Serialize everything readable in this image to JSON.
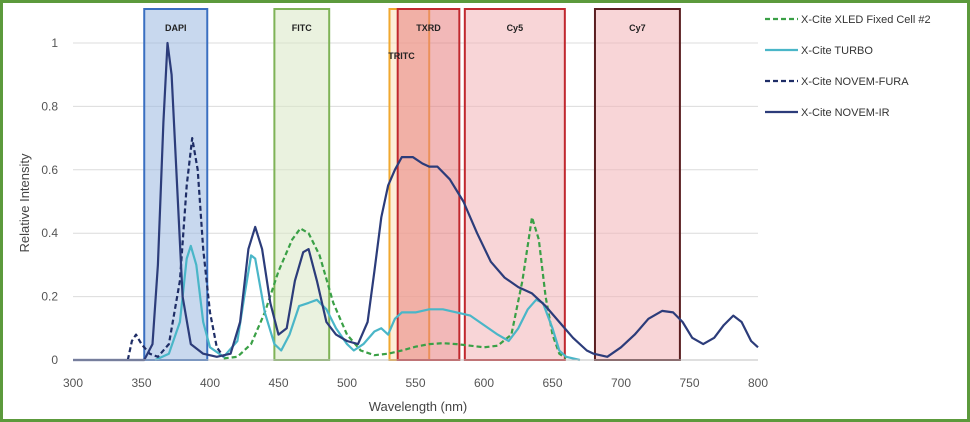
{
  "chart_data": {
    "type": "line",
    "xlabel": "Wavelength (nm)",
    "ylabel": "Relative Intensity",
    "xlim": [
      300,
      800
    ],
    "ylim": [
      0,
      1.1
    ],
    "x_ticks": [
      300,
      350,
      400,
      450,
      500,
      550,
      600,
      650,
      700,
      750,
      800
    ],
    "y_ticks": [
      0,
      0.2,
      0.4,
      0.6,
      0.8,
      1
    ],
    "y_tick_labels": [
      "0",
      "0.2",
      "0.4",
      "0.6",
      "0.8",
      "1"
    ],
    "grid": "horizontal",
    "legend_position": "right",
    "bands": [
      {
        "label": "DAPI",
        "x0": 352,
        "x1": 398,
        "fill": "#9bb8e0",
        "stroke": "#3a6fc1"
      },
      {
        "label": "FITC",
        "x0": 447,
        "x1": 487,
        "fill": "#d9e8c4",
        "stroke": "#7fb357"
      },
      {
        "label": "TRITC",
        "x0": 531,
        "x1": 560,
        "fill": "#fbe0b8",
        "stroke": "#f0a830"
      },
      {
        "label": "TXRD",
        "x0": 537,
        "x1": 582,
        "fill": "#e87d7d",
        "stroke": "#c0282e"
      },
      {
        "label": "Cy5",
        "x0": 586,
        "x1": 659,
        "fill": "#f2b3b6",
        "stroke": "#c0282e"
      },
      {
        "label": "Cy7",
        "x0": 681,
        "x1": 743,
        "fill": "#f2b3b6",
        "stroke": "#5a1e20"
      }
    ],
    "series": [
      {
        "name": "X-Cite XLED Fixed Cell #2",
        "color": "#3aa046",
        "dash": "5,3",
        "points": [
          [
            410,
            0.005
          ],
          [
            420,
            0.01
          ],
          [
            430,
            0.05
          ],
          [
            440,
            0.15
          ],
          [
            450,
            0.28
          ],
          [
            460,
            0.38
          ],
          [
            466,
            0.415
          ],
          [
            472,
            0.4
          ],
          [
            480,
            0.33
          ],
          [
            490,
            0.18
          ],
          [
            500,
            0.08
          ],
          [
            510,
            0.03
          ],
          [
            520,
            0.015
          ],
          [
            530,
            0.02
          ],
          [
            540,
            0.03
          ],
          [
            550,
            0.042
          ],
          [
            560,
            0.05
          ],
          [
            570,
            0.053
          ],
          [
            580,
            0.05
          ],
          [
            590,
            0.045
          ],
          [
            600,
            0.04
          ],
          [
            610,
            0.045
          ],
          [
            620,
            0.08
          ],
          [
            628,
            0.25
          ],
          [
            635,
            0.45
          ],
          [
            640,
            0.38
          ],
          [
            645,
            0.2
          ],
          [
            650,
            0.08
          ],
          [
            655,
            0.02
          ],
          [
            660,
            0.005
          ]
        ]
      },
      {
        "name": "X-Cite TURBO",
        "color": "#4ab6c8",
        "dash": "",
        "points": [
          [
            360,
            0.0
          ],
          [
            370,
            0.02
          ],
          [
            378,
            0.12
          ],
          [
            383,
            0.32
          ],
          [
            386,
            0.36
          ],
          [
            390,
            0.3
          ],
          [
            395,
            0.12
          ],
          [
            400,
            0.04
          ],
          [
            410,
            0.01
          ],
          [
            420,
            0.06
          ],
          [
            425,
            0.2
          ],
          [
            430,
            0.33
          ],
          [
            433,
            0.32
          ],
          [
            440,
            0.15
          ],
          [
            447,
            0.05
          ],
          [
            452,
            0.03
          ],
          [
            458,
            0.08
          ],
          [
            465,
            0.17
          ],
          [
            472,
            0.18
          ],
          [
            478,
            0.19
          ],
          [
            485,
            0.16
          ],
          [
            492,
            0.1
          ],
          [
            500,
            0.05
          ],
          [
            505,
            0.03
          ],
          [
            512,
            0.05
          ],
          [
            520,
            0.09
          ],
          [
            525,
            0.1
          ],
          [
            530,
            0.08
          ],
          [
            535,
            0.13
          ],
          [
            540,
            0.15
          ],
          [
            550,
            0.15
          ],
          [
            560,
            0.16
          ],
          [
            570,
            0.16
          ],
          [
            580,
            0.15
          ],
          [
            590,
            0.14
          ],
          [
            600,
            0.11
          ],
          [
            610,
            0.08
          ],
          [
            618,
            0.06
          ],
          [
            625,
            0.1
          ],
          [
            632,
            0.16
          ],
          [
            638,
            0.19
          ],
          [
            643,
            0.18
          ],
          [
            650,
            0.1
          ],
          [
            655,
            0.03
          ],
          [
            660,
            0.01
          ],
          [
            670,
            0.0
          ]
        ]
      },
      {
        "name": "X-Cite NOVEM-FURA",
        "color": "#1e2d66",
        "dash": "5,3",
        "points": [
          [
            340,
            0.0
          ],
          [
            343,
            0.06
          ],
          [
            346,
            0.08
          ],
          [
            350,
            0.05
          ],
          [
            356,
            0.02
          ],
          [
            362,
            0.01
          ],
          [
            370,
            0.05
          ],
          [
            378,
            0.25
          ],
          [
            383,
            0.55
          ],
          [
            387,
            0.7
          ],
          [
            391,
            0.6
          ],
          [
            395,
            0.35
          ],
          [
            400,
            0.15
          ],
          [
            405,
            0.04
          ],
          [
            410,
            0.01
          ]
        ]
      },
      {
        "name": "X-Cite NOVEM-IR",
        "color": "#2c3c7a",
        "dash": "",
        "points": [
          [
            300,
            0.0
          ],
          [
            352,
            0.0
          ],
          [
            358,
            0.05
          ],
          [
            362,
            0.3
          ],
          [
            366,
            0.75
          ],
          [
            369,
            1.0
          ],
          [
            372,
            0.9
          ],
          [
            376,
            0.55
          ],
          [
            380,
            0.2
          ],
          [
            386,
            0.05
          ],
          [
            395,
            0.02
          ],
          [
            405,
            0.01
          ],
          [
            415,
            0.02
          ],
          [
            422,
            0.12
          ],
          [
            428,
            0.35
          ],
          [
            433,
            0.42
          ],
          [
            438,
            0.35
          ],
          [
            444,
            0.18
          ],
          [
            450,
            0.08
          ],
          [
            456,
            0.1
          ],
          [
            462,
            0.25
          ],
          [
            468,
            0.34
          ],
          [
            472,
            0.35
          ],
          [
            478,
            0.25
          ],
          [
            485,
            0.12
          ],
          [
            492,
            0.08
          ],
          [
            500,
            0.06
          ],
          [
            508,
            0.05
          ],
          [
            515,
            0.12
          ],
          [
            520,
            0.28
          ],
          [
            525,
            0.45
          ],
          [
            530,
            0.55
          ],
          [
            535,
            0.6
          ],
          [
            540,
            0.64
          ],
          [
            548,
            0.64
          ],
          [
            555,
            0.62
          ],
          [
            560,
            0.61
          ],
          [
            566,
            0.61
          ],
          [
            575,
            0.57
          ],
          [
            585,
            0.5
          ],
          [
            595,
            0.4
          ],
          [
            605,
            0.31
          ],
          [
            615,
            0.26
          ],
          [
            625,
            0.23
          ],
          [
            635,
            0.21
          ],
          [
            645,
            0.17
          ],
          [
            655,
            0.12
          ],
          [
            665,
            0.07
          ],
          [
            675,
            0.03
          ],
          [
            680,
            0.02
          ],
          [
            690,
            0.01
          ],
          [
            700,
            0.04
          ],
          [
            710,
            0.08
          ],
          [
            720,
            0.13
          ],
          [
            730,
            0.155
          ],
          [
            738,
            0.15
          ],
          [
            745,
            0.12
          ],
          [
            752,
            0.07
          ],
          [
            760,
            0.05
          ],
          [
            768,
            0.07
          ],
          [
            775,
            0.11
          ],
          [
            782,
            0.14
          ],
          [
            788,
            0.12
          ],
          [
            795,
            0.06
          ],
          [
            800,
            0.04
          ]
        ]
      }
    ]
  }
}
